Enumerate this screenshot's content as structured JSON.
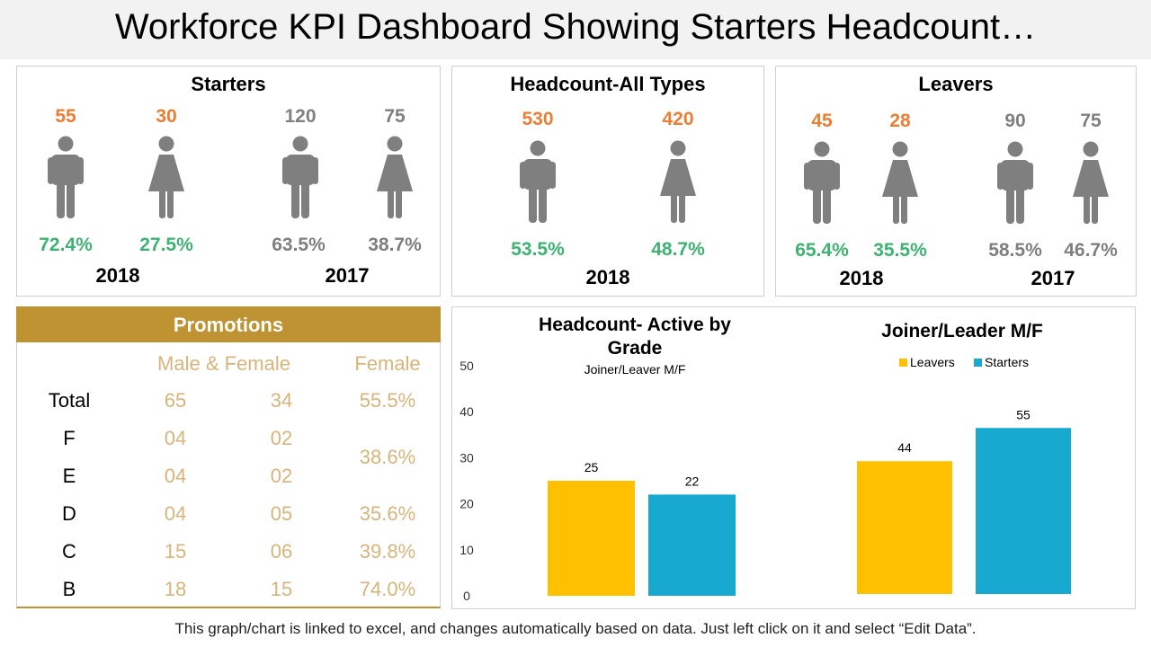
{
  "title": "Workforce KPI Dashboard Showing Starters Headcount…",
  "starters": {
    "title": "Starters",
    "y2018": {
      "year": "2018",
      "male_count": "55",
      "female_count": "30",
      "male_pct": "72.4%",
      "female_pct": "27.5%"
    },
    "y2017": {
      "year": "2017",
      "male_count": "120",
      "female_count": "75",
      "male_pct": "63.5%",
      "female_pct": "38.7%"
    }
  },
  "headcount": {
    "title": "Headcount-All Types",
    "y2018": {
      "year": "2018",
      "male_count": "530",
      "female_count": "420",
      "male_pct": "53.5%",
      "female_pct": "48.7%"
    }
  },
  "leavers": {
    "title": "Leavers",
    "y2018": {
      "year": "2018",
      "male_count": "45",
      "female_count": "28",
      "male_pct": "65.4%",
      "female_pct": "35.5%"
    },
    "y2017": {
      "year": "2017",
      "male_count": "90",
      "female_count": "75",
      "male_pct": "58.5%",
      "female_pct": "46.7%"
    }
  },
  "promotions": {
    "title": "Promotions",
    "header_left": "Male & Female",
    "header_right": "Female",
    "rows": [
      {
        "label": "Total",
        "male": "65",
        "female": "34",
        "pct": "55.5%"
      },
      {
        "label": "F",
        "male": "04",
        "female": "02",
        "pct": ""
      },
      {
        "label": "E",
        "male": "04",
        "female": "02",
        "pct": ""
      },
      {
        "label": "D",
        "male": "04",
        "female": "05",
        "pct": "35.6%"
      },
      {
        "label": "C",
        "male": "15",
        "female": "06",
        "pct": "39.8%"
      },
      {
        "label": "B",
        "male": "18",
        "female": "15",
        "pct": "74.0%"
      }
    ],
    "merged_pct_fe": "38.6%"
  },
  "colors": {
    "leavers": "#ffc000",
    "starters": "#17a9d0",
    "orange": "#ed7d31",
    "grey": "#7f7f7f",
    "green": "#3cb371",
    "gold": "#c09332"
  },
  "chart_data": [
    {
      "type": "bar",
      "title": "Headcount- Active by Grade",
      "subtitle": "Joiner/Leaver M/F",
      "categories": [
        "Leavers",
        "Starters"
      ],
      "values": [
        25,
        22
      ],
      "ylim": [
        0,
        50
      ],
      "yticks": [
        "0",
        "10",
        "20",
        "30",
        "40",
        "50"
      ],
      "data_labels": [
        "25",
        "22"
      ]
    },
    {
      "type": "bar",
      "title": "Joiner/Leader M/F",
      "legend": [
        "Leavers",
        "Starters"
      ],
      "categories": [
        "Leavers",
        "Starters"
      ],
      "values": [
        44,
        55
      ],
      "data_labels": [
        "44",
        "55"
      ]
    }
  ],
  "footer": "This graph/chart is linked to excel, and changes automatically based on data. Just left click on it and select “Edit Data”."
}
